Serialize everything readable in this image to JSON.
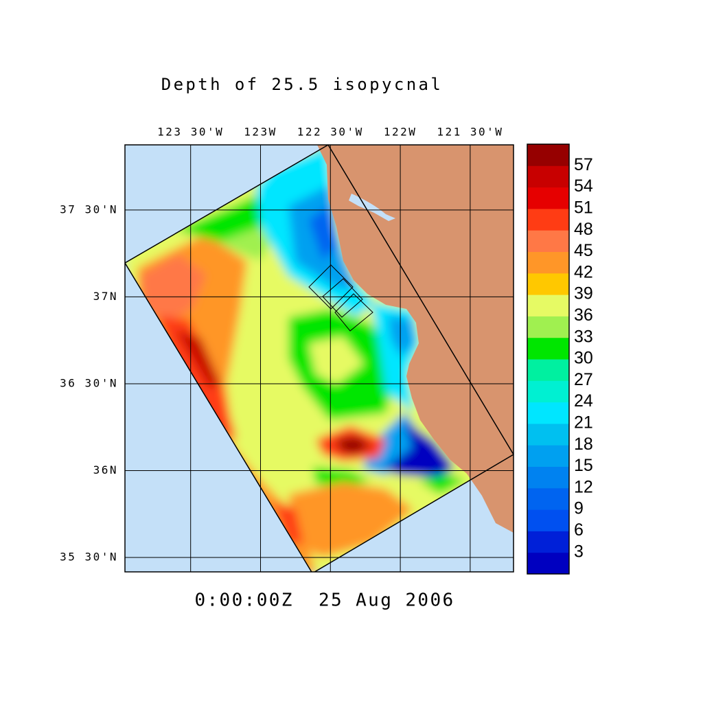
{
  "title": "Depth of 25.5 isopycnal",
  "time_label": "0:00:00Z  25 Aug 2006",
  "map": {
    "xlim": [
      -123.97,
      -121.19
    ],
    "ylim": [
      35.417,
      37.875
    ],
    "xticks": [
      {
        "value": -123.5,
        "label": "123 30'W"
      },
      {
        "value": -123,
        "label": "123W"
      },
      {
        "value": -122.5,
        "label": "122 30'W"
      },
      {
        "value": -122,
        "label": "122W"
      },
      {
        "value": -121.5,
        "label": "121 30'W"
      }
    ],
    "yticks": [
      {
        "value": 37.5,
        "label": "37 30'N"
      },
      {
        "value": 37,
        "label": "37N"
      },
      {
        "value": 36.5,
        "label": "36 30'N"
      },
      {
        "value": 36,
        "label": "36N"
      },
      {
        "value": 35.5,
        "label": "35 30'N"
      }
    ]
  },
  "colorbar": {
    "clim": [
      0,
      60
    ],
    "levels": [
      3,
      6,
      9,
      12,
      15,
      18,
      21,
      24,
      27,
      30,
      33,
      36,
      39,
      42,
      45,
      48,
      51,
      54,
      57
    ],
    "colors": [
      "#0000c0",
      "#0020d8",
      "#0050f0",
      "#0064f0",
      "#0082f0",
      "#00a0f0",
      "#00c0f0",
      "#00e6ff",
      "#00f0d2",
      "#00f0a0",
      "#00e600",
      "#a0f050",
      "#e6fa64",
      "#ffc800",
      "#ff9628",
      "#ff7846",
      "#ff3c14",
      "#e60000",
      "#c80000",
      "#960000"
    ]
  }
}
